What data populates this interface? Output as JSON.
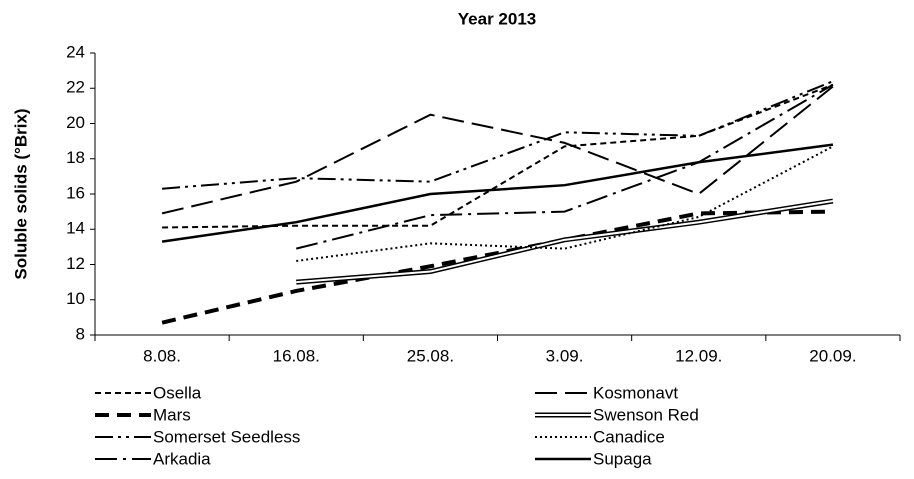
{
  "chart_data": {
    "type": "line",
    "title": "Year 2013",
    "y_label": "Soluble solids (°Brix)",
    "categories": [
      "8.08.",
      "16.08.",
      "25.08.",
      "3.09.",
      "12.09.",
      "20.09."
    ],
    "ylim": [
      8,
      24
    ],
    "yticks": [
      8,
      10,
      12,
      14,
      16,
      18,
      20,
      22,
      24
    ],
    "grid": false,
    "series": [
      {
        "name": "Osella",
        "color": "#000000",
        "dash": "6,4",
        "width": 2,
        "values": [
          14.1,
          14.2,
          14.2,
          18.7,
          19.3,
          22.2
        ]
      },
      {
        "name": "Kosmonavt",
        "color": "#000000",
        "dash": "22,8",
        "width": 2,
        "values": [
          14.9,
          16.7,
          20.5,
          18.9,
          16.0,
          22.1
        ]
      },
      {
        "name": "Mars",
        "color": "#000000",
        "dash": "14,8",
        "width": 4,
        "values": [
          8.7,
          10.5,
          11.9,
          13.4,
          14.9,
          15.0
        ]
      },
      {
        "name": "Swenson Red",
        "color": "#000000",
        "dash": "double",
        "width": 5,
        "values": [
          null,
          11.0,
          11.6,
          13.4,
          14.4,
          15.6
        ]
      },
      {
        "name": "Somerset Seedless",
        "color": "#000000",
        "dash": "18,5,3,5,3,5",
        "width": 2,
        "values": [
          16.3,
          16.9,
          16.7,
          19.5,
          19.3,
          22.4
        ]
      },
      {
        "name": "Canadice",
        "color": "#000000",
        "dash": "2,3",
        "width": 2,
        "values": [
          null,
          12.2,
          13.2,
          12.9,
          14.7,
          18.7
        ]
      },
      {
        "name": "Arkadia",
        "color": "#000000",
        "dash": "22,6,3,6",
        "width": 2,
        "values": [
          null,
          12.9,
          14.8,
          15.0,
          17.8,
          22.2
        ]
      },
      {
        "name": "Supaga",
        "color": "#000000",
        "dash": "none",
        "width": 2.5,
        "values": [
          13.3,
          14.4,
          16.0,
          16.5,
          17.8,
          18.8
        ]
      }
    ]
  }
}
